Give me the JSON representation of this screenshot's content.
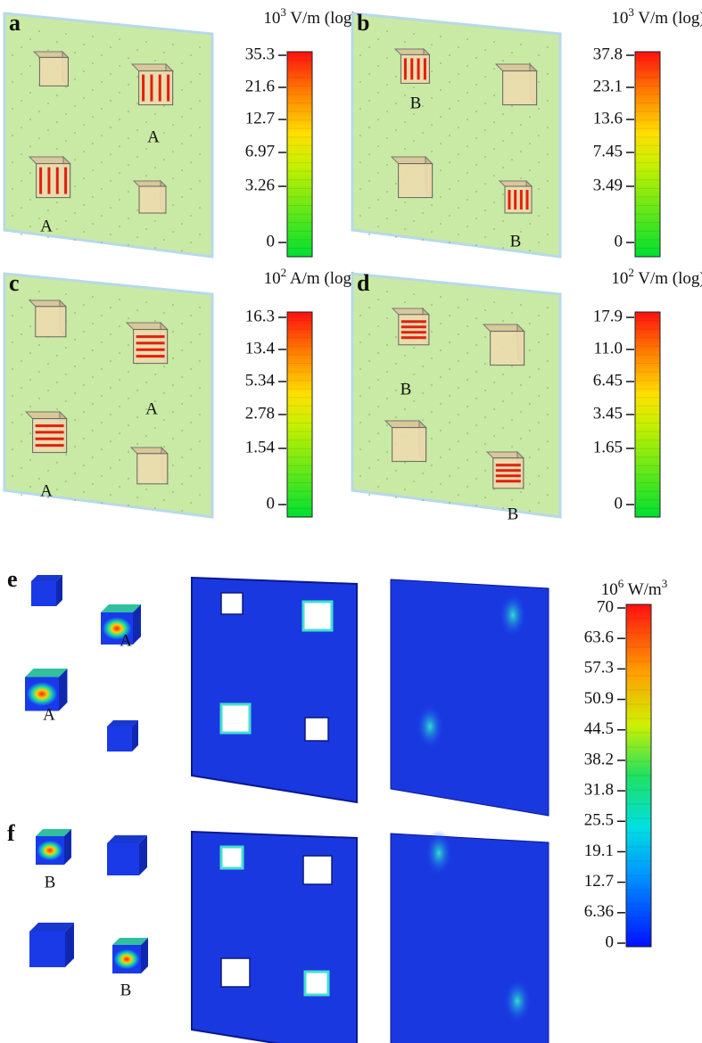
{
  "panels": [
    {
      "letter": "a",
      "unit": {
        "base": "10",
        "exp": "3",
        "rest": " V/m (log)"
      },
      "ticks": [
        "35.3",
        "21.6",
        "12.7",
        "6.97",
        "3.26",
        "0"
      ],
      "labels": [
        "A",
        "A"
      ]
    },
    {
      "letter": "b",
      "unit": {
        "base": "10",
        "exp": "3",
        "rest": " V/m (log)"
      },
      "ticks": [
        "37.8",
        "23.1",
        "13.6",
        "7.45",
        "3.49",
        "0"
      ],
      "labels": [
        "B",
        "B"
      ]
    },
    {
      "letter": "c",
      "unit": {
        "base": "10",
        "exp": "2",
        "rest": " A/m (log)"
      },
      "ticks": [
        "16.3",
        "13.4",
        "5.34",
        "2.78",
        "1.54",
        "0"
      ],
      "labels": [
        "A",
        "A"
      ]
    },
    {
      "letter": "d",
      "unit": {
        "base": "10",
        "exp": "2",
        "rest": " V/m (log)"
      },
      "ticks": [
        "17.9",
        "11.0",
        "6.45",
        "3.45",
        "1.65",
        "0"
      ],
      "labels": [
        "B",
        "B"
      ]
    },
    {
      "letter": "e",
      "labels": [
        "A",
        "A"
      ]
    },
    {
      "letter": "f",
      "labels": [
        "B",
        "B"
      ]
    }
  ],
  "loss_scale": {
    "unit": {
      "base": "10",
      "exp": "6",
      "rest": " W/m",
      "exp2": "3"
    },
    "ticks": [
      "70",
      "63.6",
      "57.3",
      "50.9",
      "44.5",
      "38.2",
      "31.8",
      "25.5",
      "19.1",
      "12.7",
      "6.36",
      "0"
    ]
  }
}
